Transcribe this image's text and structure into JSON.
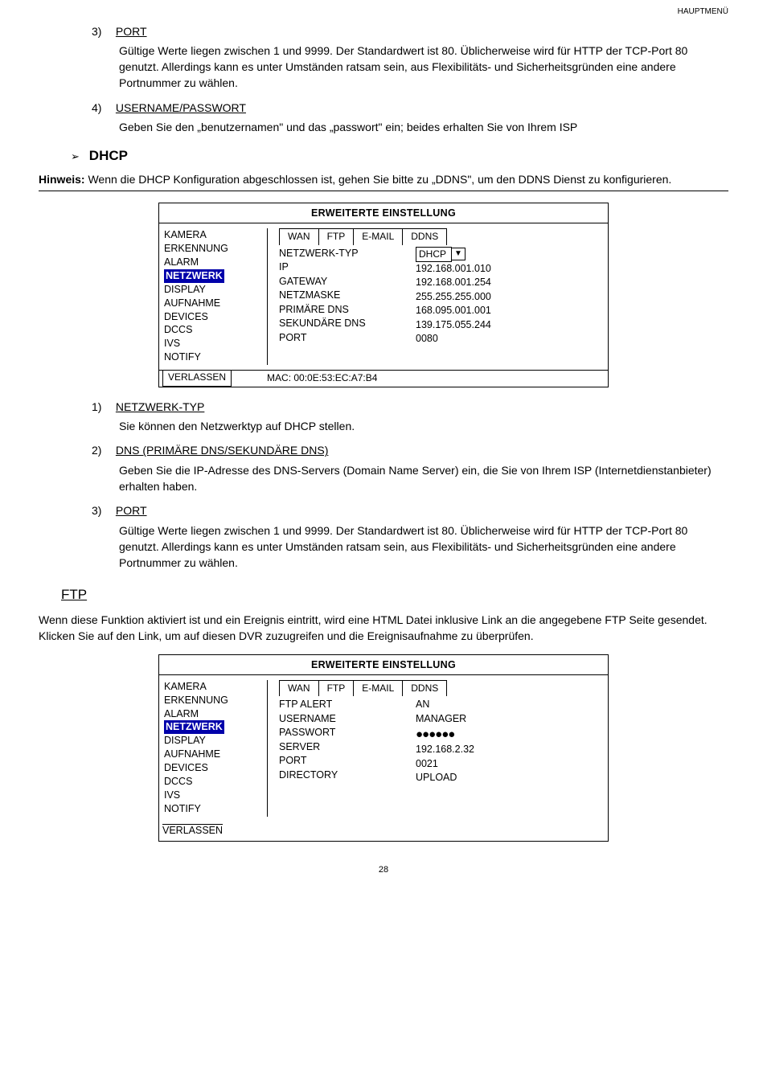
{
  "header": {
    "section": "HAUPTMENÜ"
  },
  "items": {
    "port1": {
      "num": "3)",
      "title": "PORT",
      "body": "Gültige Werte liegen zwischen 1 und 9999. Der Standardwert ist 80. Üblicherweise wird für HTTP der TCP-Port 80 genutzt. Allerdings kann es unter Umständen ratsam sein, aus Flexibilitäts- und Sicherheitsgründen eine andere Portnummer zu wählen."
    },
    "userpass": {
      "num": "4)",
      "title": "USERNAME/PASSWORT",
      "body": "Geben Sie den „benutzernamen\" und das „passwort\" ein; beides erhalten Sie von Ihrem ISP"
    },
    "netztyp": {
      "num": "1)",
      "title": "NETZWERK-TYP",
      "body": "Sie können den Netzwerktyp auf DHCP stellen."
    },
    "dns": {
      "num": "2)",
      "title": "DNS (PRIMÄRE DNS/SEKUNDÄRE DNS)",
      "body": "Geben Sie die IP-Adresse des DNS-Servers (Domain Name Server) ein, die Sie von Ihrem ISP (Internetdienstanbieter) erhalten haben."
    },
    "port2": {
      "num": "3)",
      "title": "PORT",
      "body": "Gültige Werte liegen zwischen 1 und 9999. Der Standardwert ist 80. Üblicherweise wird für HTTP der TCP-Port 80 genutzt. Allerdings kann es unter Umständen ratsam sein, aus Flexibilitäts- und Sicherheitsgründen eine andere Portnummer zu wählen."
    }
  },
  "dhcp_label": "DHCP",
  "hinweis": {
    "label": "Hinweis:",
    "text": " Wenn die DHCP Konfiguration abgeschlossen ist, gehen Sie bitte zu „DDNS\", um den DDNS Dienst zu konfigurieren."
  },
  "box": {
    "title": "ERWEITERTE EINSTELLUNG",
    "sidebar": [
      "KAMERA",
      "ERKENNUNG",
      "ALARM",
      "NETZWERK",
      "DISPLAY",
      "AUFNAHME",
      "DEVICES",
      "DCCS",
      "IVS",
      "NOTIFY"
    ],
    "highlight_index": 3,
    "tabs": [
      "WAN",
      "FTP",
      "E-MAIL",
      "DDNS"
    ],
    "verlassen": "VERLASSEN"
  },
  "box1": {
    "labels": [
      "NETZWERK-TYP",
      "IP",
      "GATEWAY",
      "NETZMASKE",
      "PRIMÄRE DNS",
      "SEKUNDÄRE DNS",
      "PORT"
    ],
    "selectval": "DHCP",
    "values": [
      "192.168.001.010",
      "192.168.001.254",
      "255.255.255.000",
      "168.095.001.001",
      "139.175.055.244",
      "0080"
    ],
    "mac": "MAC: 00:0E:53:EC:A7:B4"
  },
  "box2": {
    "labels": [
      "FTP ALERT",
      "USERNAME",
      "PASSWORT",
      "SERVER",
      "PORT",
      "DIRECTORY"
    ],
    "values": [
      "AN",
      "MANAGER",
      "●●●●●●",
      "192.168.2.32",
      "0021",
      "UPLOAD"
    ]
  },
  "ftp": {
    "heading": "FTP",
    "body": "Wenn diese Funktion aktiviert ist und ein Ereignis eintritt, wird eine HTML Datei inklusive Link an die angegebene FTP Seite gesendet. Klicken Sie auf den Link, um auf diesen DVR zuzugreifen und die Ereignisaufnahme zu überprüfen."
  },
  "pagenum": "28"
}
